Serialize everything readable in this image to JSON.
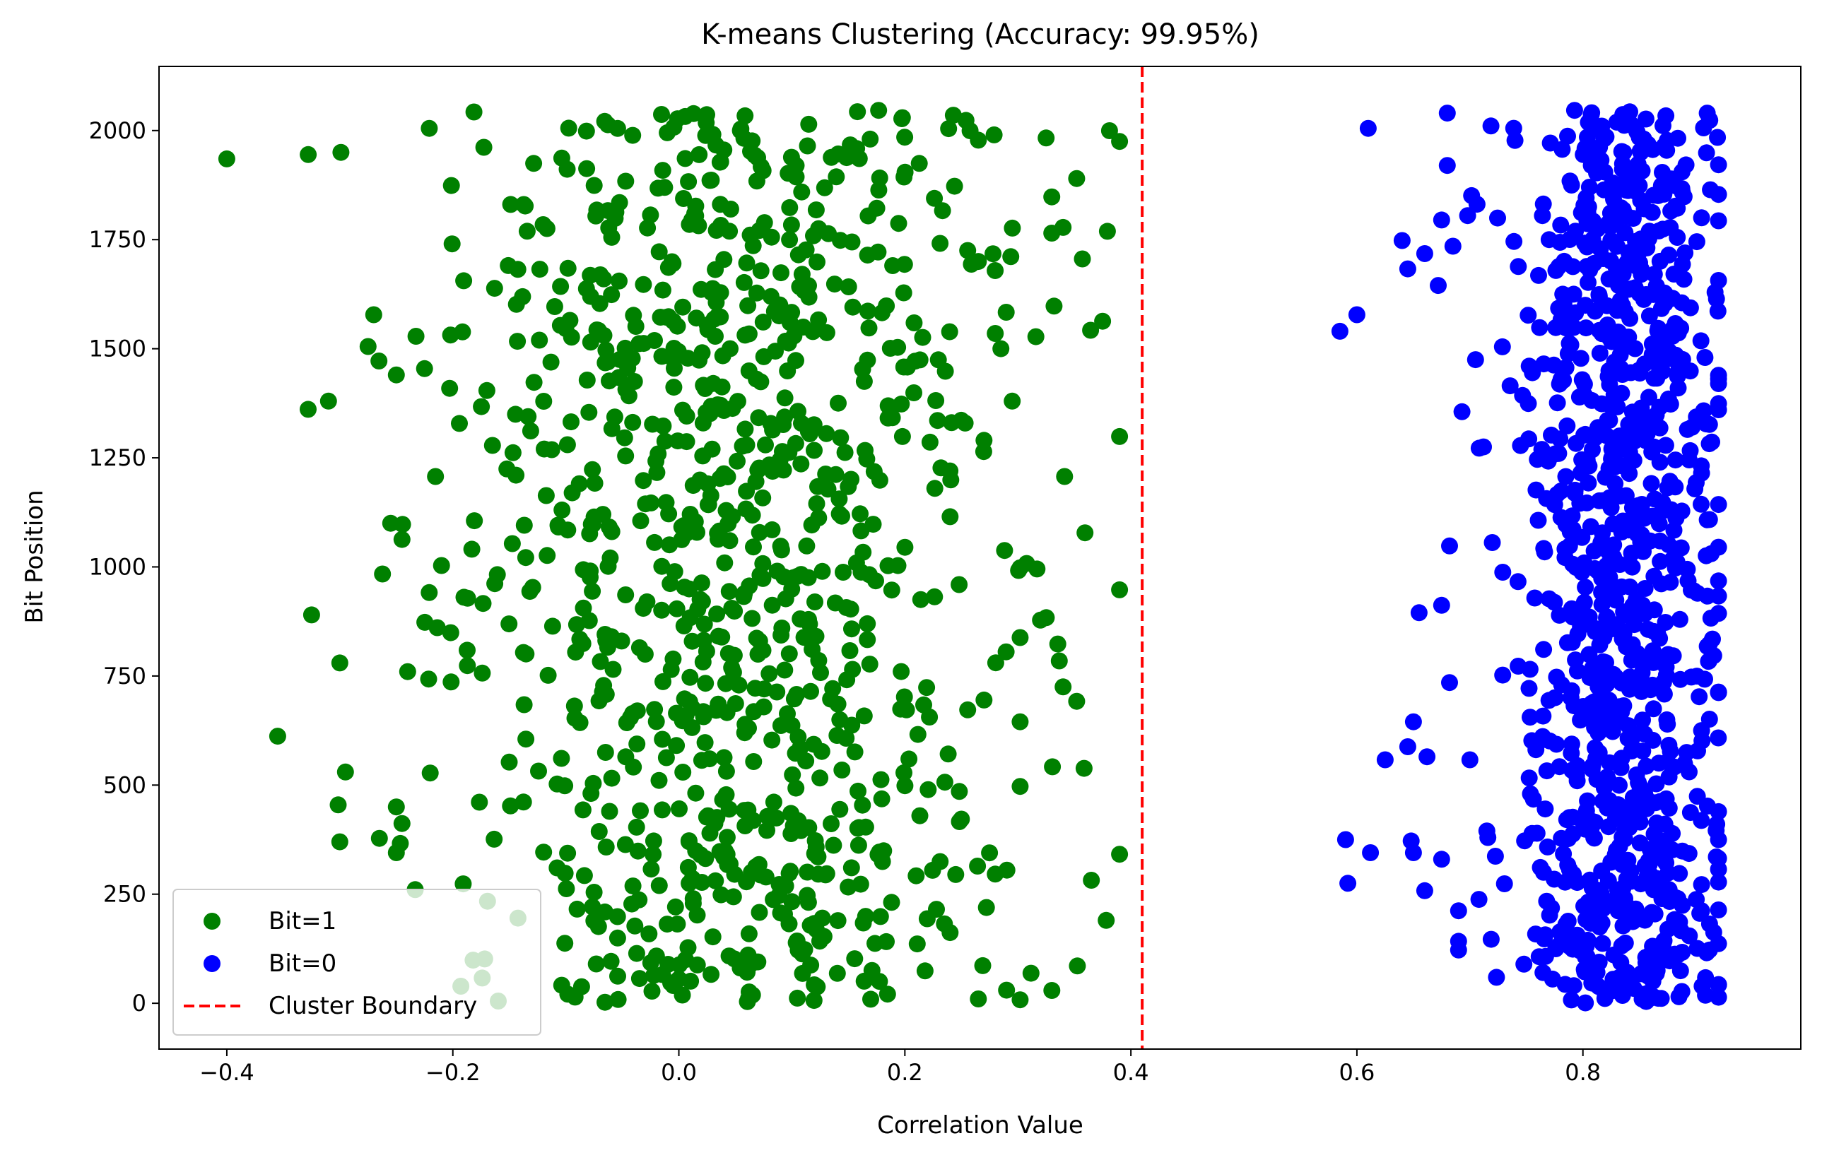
{
  "chart_data": {
    "type": "scatter",
    "title": "K-means Clustering (Accuracy: 99.95%)",
    "xlabel": "Correlation Value",
    "ylabel": "Bit Position",
    "xlim": [
      -0.46,
      0.9928
    ],
    "ylim": [
      -105,
      2147
    ],
    "xticks": [
      -0.4,
      -0.2,
      0.0,
      0.2,
      0.4,
      0.6,
      0.8
    ],
    "xtick_labels": [
      "−0.4",
      "−0.2",
      "0.0",
      "0.2",
      "0.4",
      "0.6",
      "0.8"
    ],
    "yticks": [
      0,
      250,
      500,
      750,
      1000,
      1250,
      1500,
      1750,
      2000
    ],
    "ytick_labels": [
      "0",
      "250",
      "500",
      "750",
      "1000",
      "1250",
      "1500",
      "1750",
      "2000"
    ],
    "grid": false,
    "legend_position": "lower-left",
    "boundary": {
      "name": "Cluster Boundary",
      "x": 0.41,
      "color": "#ff0000",
      "style": "dashed"
    },
    "series": [
      {
        "name": "Bit=1",
        "color": "#008000",
        "generator": {
          "count": 1024,
          "seed": 7,
          "x_mean": 0.05,
          "x_std": 0.12,
          "x_min": -0.4,
          "x_max": 0.39,
          "y_min": 0,
          "y_max": 2047
        },
        "points": [
          [
            -0.4,
            1935
          ],
          [
            -0.328,
            1945
          ],
          [
            -0.299,
            1950
          ],
          [
            -0.31,
            1380
          ],
          [
            -0.355,
            612
          ],
          [
            -0.325,
            890
          ],
          [
            -0.3,
            780
          ],
          [
            -0.295,
            530
          ],
          [
            -0.3,
            370
          ],
          [
            0.39,
            1975
          ],
          [
            0.375,
            1563
          ],
          [
            0.365,
            282
          ],
          [
            0.352,
            1890
          ],
          [
            0.352,
            692
          ],
          [
            0.33,
            1848
          ],
          [
            0.325,
            1983
          ],
          [
            0.34,
            1778
          ],
          [
            0.33,
            1765
          ],
          [
            0.302,
            998
          ],
          [
            0.302,
            838
          ],
          [
            0.302,
            645
          ],
          [
            0.302,
            497
          ],
          [
            0.302,
            8
          ],
          [
            0.29,
            30
          ],
          [
            0.27,
            1290
          ],
          [
            0.265,
            1978
          ],
          [
            0.265,
            1700
          ],
          [
            0.27,
            695
          ],
          [
            0.265,
            10
          ],
          [
            0.32,
            878
          ],
          [
            0.34,
            725
          ],
          [
            0.295,
            1380
          ],
          [
            0.28,
            1535
          ],
          [
            0.285,
            1500
          ],
          [
            0.07,
            800
          ],
          [
            -0.27,
            1578
          ],
          [
            -0.275,
            1505
          ],
          [
            -0.25,
            1440
          ],
          [
            -0.255,
            1100
          ],
          [
            -0.245,
            1063
          ],
          [
            -0.24,
            760
          ],
          [
            -0.25,
            450
          ],
          [
            -0.245,
            412
          ],
          [
            -0.265,
            378
          ],
          [
            -0.25,
            345
          ],
          [
            0.25,
            422
          ],
          [
            0.245,
            295
          ],
          [
            0.235,
            182
          ],
          [
            0.24,
            162
          ],
          [
            0.24,
            1115
          ]
        ]
      },
      {
        "name": "Bit=0",
        "color": "#0000ff",
        "generator": {
          "count": 1024,
          "seed": 13,
          "x_mean": 0.835,
          "x_std": 0.045,
          "x_min": 0.585,
          "x_max": 0.92,
          "y_min": 0,
          "y_max": 2047
        },
        "points": [
          [
            0.585,
            1540
          ],
          [
            0.6,
            1578
          ],
          [
            0.61,
            2005
          ],
          [
            0.59,
            375
          ],
          [
            0.592,
            275
          ],
          [
            0.612,
            345
          ],
          [
            0.625,
            558
          ],
          [
            0.64,
            1748
          ],
          [
            0.645,
            1683
          ],
          [
            0.645,
            588
          ],
          [
            0.648,
            372
          ],
          [
            0.65,
            345
          ],
          [
            0.65,
            645
          ],
          [
            0.655,
            895
          ],
          [
            0.66,
            1718
          ],
          [
            0.66,
            258
          ],
          [
            0.662,
            565
          ],
          [
            0.672,
            1645
          ],
          [
            0.675,
            1795
          ],
          [
            0.675,
            912
          ],
          [
            0.675,
            330
          ],
          [
            0.68,
            2040
          ],
          [
            0.68,
            1920
          ],
          [
            0.682,
            1048
          ],
          [
            0.682,
            735
          ],
          [
            0.69,
            212
          ],
          [
            0.685,
            1735
          ],
          [
            0.69,
            142
          ],
          [
            0.69,
            122
          ],
          [
            0.698,
            1805
          ],
          [
            0.7,
            558
          ],
          [
            0.705,
            1475
          ],
          [
            0.708,
            238
          ],
          [
            0.712,
            1275
          ],
          [
            0.715,
            395
          ],
          [
            0.92,
            332
          ],
          [
            0.912,
            122
          ],
          [
            0.91,
            2040
          ],
          [
            0.912,
            2025
          ],
          [
            0.905,
            1800
          ],
          [
            0.908,
            1480
          ],
          [
            0.905,
            1215
          ],
          [
            0.91,
            1108
          ],
          [
            0.91,
            818
          ],
          [
            0.905,
            625
          ],
          [
            0.905,
            272
          ],
          [
            0.905,
            212
          ],
          [
            0.885,
            15
          ],
          [
            0.86,
            12
          ],
          [
            0.835,
            18
          ]
        ]
      }
    ]
  }
}
